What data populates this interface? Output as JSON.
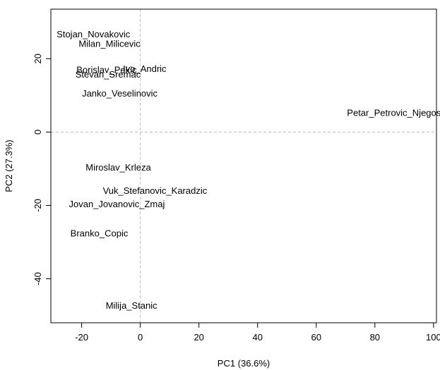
{
  "chart_data": {
    "type": "scatter",
    "xlabel": "PC1 (36.6%)",
    "ylabel": "PC2 (27.3%)",
    "xlim": [
      -30.5,
      101
    ],
    "ylim": [
      -52,
      33.5
    ],
    "x_ticks": [
      -20,
      0,
      20,
      40,
      60,
      80,
      100
    ],
    "y_ticks": [
      -40,
      -20,
      0,
      20
    ],
    "x_tick_labels": [
      "-20",
      "0",
      "20",
      "40",
      "60",
      "80",
      "100"
    ],
    "y_tick_labels": [
      "-40",
      "-20",
      "0",
      "20"
    ],
    "reference_lines": {
      "x": 0,
      "y": 0,
      "style": "dashed",
      "color": "#bdbdbd"
    },
    "grid": false,
    "points": [
      {
        "label": "Stojan_Novakovic",
        "x": -16.0,
        "y": 26.7
      },
      {
        "label": "Milan_Milicevic",
        "x": -10.5,
        "y": 24.1
      },
      {
        "label": "Ivo_Andric",
        "x": 1.5,
        "y": 17.3
      },
      {
        "label": "Borislav_Pekic",
        "x": -11.5,
        "y": 17.0
      },
      {
        "label": "Stevan_Sremac",
        "x": -11.0,
        "y": 15.7
      },
      {
        "label": "Janko_Veselinovic",
        "x": -7.0,
        "y": 10.5
      },
      {
        "label": "Petar_Petrovic_Njegos",
        "x": 86.5,
        "y": 5.3
      },
      {
        "label": "Miroslav_Krleza",
        "x": -7.5,
        "y": -9.6
      },
      {
        "label": "Vuk_Stefanovic_Karadzic",
        "x": 5.0,
        "y": -16.0
      },
      {
        "label": "Jovan_Jovanovic_Zmaj",
        "x": -8.0,
        "y": -19.6
      },
      {
        "label": "Branko_Copic",
        "x": -14.0,
        "y": -27.6
      },
      {
        "label": "Milija_Stanic",
        "x": -3.0,
        "y": -47.3
      }
    ]
  }
}
